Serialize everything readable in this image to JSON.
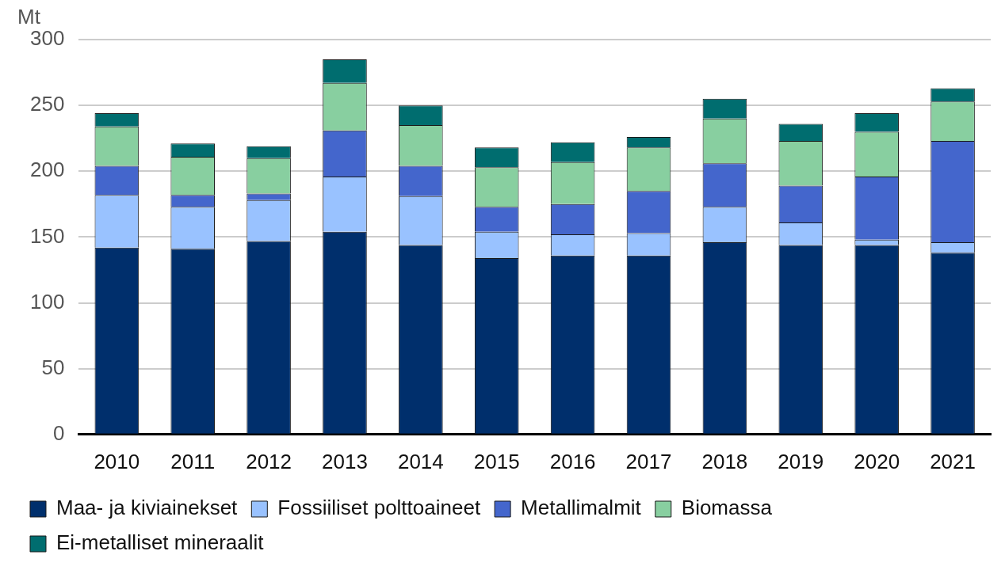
{
  "chart_data": {
    "type": "bar",
    "stacked": true,
    "grid": true,
    "legend": "bottom",
    "ylabel": "Mt",
    "categories": [
      "2010",
      "2011",
      "2012",
      "2013",
      "2014",
      "2015",
      "2016",
      "2017",
      "2018",
      "2019",
      "2020",
      "2021"
    ],
    "series": [
      {
        "name": "Maa- ja kiviainekset",
        "color": "#002f6c",
        "values": [
          142,
          141,
          147,
          154,
          144,
          134,
          136,
          136,
          146,
          144,
          144,
          138
        ]
      },
      {
        "name": "Fossiiliset polttoaineet",
        "color": "#99c2ff",
        "values": [
          40,
          32,
          31,
          42,
          37,
          20,
          16,
          17,
          27,
          17,
          4,
          8
        ]
      },
      {
        "name": "Metallimalmit",
        "color": "#4466cc",
        "values": [
          22,
          9,
          5,
          35,
          23,
          19,
          23,
          32,
          33,
          28,
          48,
          77
        ]
      },
      {
        "name": "Biomassa",
        "color": "#88cfa0",
        "values": [
          30,
          29,
          27,
          36,
          31,
          30,
          32,
          33,
          34,
          34,
          34,
          30
        ]
      },
      {
        "name": "Ei-metalliset mineraalit",
        "color": "#006d6f",
        "values": [
          10,
          10,
          9,
          18,
          15,
          15,
          15,
          8,
          15,
          13,
          14,
          10
        ]
      }
    ],
    "ylim": [
      0,
      300
    ],
    "yticks": [
      0,
      50,
      100,
      150,
      200,
      250,
      300
    ]
  }
}
